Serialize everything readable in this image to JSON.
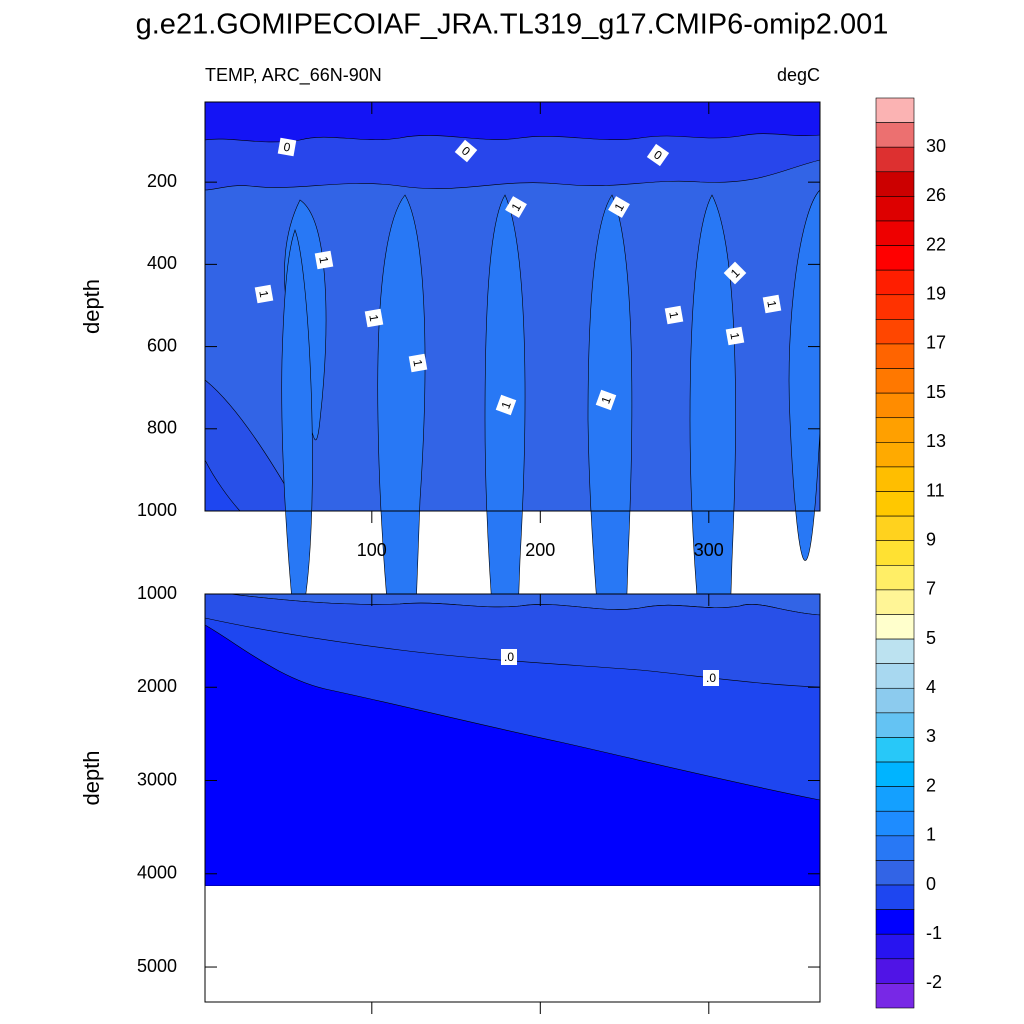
{
  "title": "g.e21.GOMIPECOIAF_JRA.TL319_g17.CMIP6-omip2.001",
  "chart_data": [
    {
      "type": "contour",
      "subtitle_left": "TEMP, ARC_66N-90N",
      "subtitle_right": "degC",
      "y_label": "depth",
      "xlim": [
        1,
        366
      ],
      "xticks": [
        100,
        200,
        300
      ],
      "xtick_labels_shown": true,
      "ylim": [
        5,
        1000
      ],
      "yticks": [
        200,
        400,
        600,
        800,
        1000
      ],
      "y_inverted": true,
      "contour_labels": [
        "0",
        "0",
        "0",
        "1",
        "1",
        "1",
        "1",
        "1",
        "1",
        "1",
        "1",
        "1",
        "1",
        "1",
        "1"
      ]
    },
    {
      "type": "contour",
      "y_label": "depth",
      "xlim": [
        1,
        366
      ],
      "xticks": [
        100,
        200,
        300
      ],
      "xtick_labels_shown": false,
      "ylim": [
        1000,
        5375
      ],
      "yticks": [
        1000,
        2000,
        3000,
        4000,
        5000
      ],
      "y_inverted": true,
      "contour_labels": [
        ".0",
        ".0"
      ]
    }
  ],
  "colorbar": {
    "labels": [
      30,
      26,
      22,
      19,
      17,
      15,
      13,
      11,
      9,
      7,
      5,
      4,
      3,
      2,
      1,
      0,
      -1,
      -2
    ],
    "colors": [
      "#fbb3b3",
      "#ec7070",
      "#dd3030",
      "#cc0000",
      "#dd0000",
      "#ee0000",
      "#ff0000",
      "#ff1e00",
      "#ff3200",
      "#ff4600",
      "#ff6400",
      "#ff7800",
      "#ff8c00",
      "#ffa000",
      "#ffaa00",
      "#ffbe00",
      "#ffc800",
      "#ffd21e",
      "#ffe132",
      "#ffee66",
      "#fff596",
      "#ffffcc",
      "#bce2f0",
      "#a8d8f0",
      "#8ccbee",
      "#64c3f3",
      "#28c8f8",
      "#00b4ff",
      "#14a0ff",
      "#1e8cff",
      "#2878f5",
      "#3264e6",
      "#1e46f0",
      "#0000ff",
      "#2814f0",
      "#5014e6",
      "#7828e6"
    ]
  }
}
